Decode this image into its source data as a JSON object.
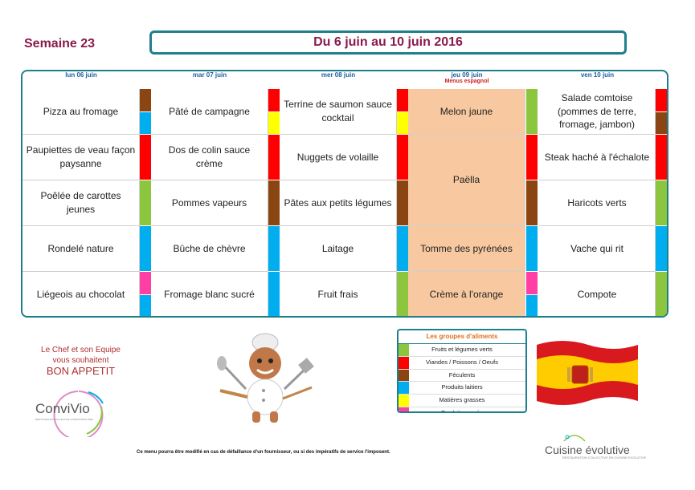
{
  "header": {
    "week": "Semaine 23",
    "title": "Du 6 juin au 10 juin 2016"
  },
  "days": [
    {
      "label": "lun 06 juin",
      "sub": ""
    },
    {
      "label": "mar 07 juin",
      "sub": ""
    },
    {
      "label": "mer 08 juin",
      "sub": ""
    },
    {
      "label": "jeu 09 juin",
      "sub": "Menus espagnol"
    },
    {
      "label": "ven 10 juin",
      "sub": ""
    }
  ],
  "colors": {
    "green": "#8cc63f",
    "red": "#ff0000",
    "brown": "#8b4513",
    "blue": "#00aeef",
    "yellow": "#ffff00",
    "pink": "#ff3fa4",
    "teal": "#1f7f8c",
    "peach": "#f8c9a0"
  },
  "menu": {
    "mon": [
      {
        "text": "Pizza au fromage",
        "groups": [
          "brown",
          "blue"
        ]
      },
      {
        "text": "Paupiettes de veau façon paysanne",
        "groups": [
          "red"
        ]
      },
      {
        "text": "Poêlée de carottes jeunes",
        "groups": [
          "green"
        ]
      },
      {
        "text": "Rondelé nature",
        "groups": [
          "blue"
        ]
      },
      {
        "text": "Liégeois au chocolat",
        "groups": [
          "pink",
          "blue"
        ]
      }
    ],
    "tue": [
      {
        "text": "Pâté de campagne",
        "groups": [
          "red",
          "yellow"
        ]
      },
      {
        "text": "Dos de colin sauce crème",
        "groups": [
          "red"
        ]
      },
      {
        "text": "Pommes vapeurs",
        "groups": [
          "brown"
        ]
      },
      {
        "text": "Bûche de chèvre",
        "groups": [
          "blue"
        ]
      },
      {
        "text": "Fromage blanc sucré",
        "groups": [
          "blue"
        ]
      }
    ],
    "wed": [
      {
        "text": "Terrine de saumon sauce cocktail",
        "groups": [
          "red",
          "yellow"
        ]
      },
      {
        "text": "Nuggets de volaille",
        "groups": [
          "red"
        ]
      },
      {
        "text": "Pâtes aux petits légumes",
        "groups": [
          "brown"
        ]
      },
      {
        "text": "Laitage",
        "groups": [
          "blue"
        ]
      },
      {
        "text": "Fruit frais",
        "groups": [
          "green"
        ]
      }
    ],
    "thu": [
      {
        "text": "Melon jaune",
        "groups": [
          "green"
        ]
      },
      {
        "text": "Paëlla",
        "groups": [
          "red",
          "brown"
        ]
      },
      {
        "text": "Tomme des pyrénées",
        "groups": [
          "blue"
        ]
      },
      {
        "text": "Crème à l'orange",
        "groups": [
          "pink",
          "blue"
        ]
      }
    ],
    "fri": [
      {
        "text": "Salade comtoise (pommes de terre, fromage, jambon)",
        "groups": [
          "red",
          "brown"
        ]
      },
      {
        "text": "Steak haché à l'échalote",
        "groups": [
          "red"
        ]
      },
      {
        "text": "Haricots verts",
        "groups": [
          "green"
        ]
      },
      {
        "text": "Vache qui rit",
        "groups": [
          "blue"
        ]
      },
      {
        "text": "Compote",
        "groups": [
          "green"
        ]
      }
    ]
  },
  "legend": {
    "title": "Les groupes d'aliments",
    "items": [
      {
        "label": "Fruits et légumes verts",
        "color": "green"
      },
      {
        "label": "Viandes / Poissons / Oeufs",
        "color": "red"
      },
      {
        "label": "Féculents",
        "color": "brown"
      },
      {
        "label": "Produits laitiers",
        "color": "blue"
      },
      {
        "label": "Matières grasses",
        "color": "yellow"
      },
      {
        "label": "Produits sucrés",
        "color": "pink"
      }
    ]
  },
  "footer": {
    "chef_line1": "Le Chef et son Equipe",
    "chef_line2": "vous souhaitent",
    "chef_line3": "BON APPETIT",
    "convivio": "ConviVio",
    "convivio_tagline": "RESTAURATION COLLECTIVE & PERSONNALISEE",
    "note": "Ce menu pourra être modifié en cas de défaillance d'un fournisseur, ou si des impératifs de service l'imposent.",
    "cuisine": "Cuisine évolutive",
    "cuisine_tagline": "RESTAURATION COLLECTIVE EN CUISINE EVOLUTIVE"
  }
}
